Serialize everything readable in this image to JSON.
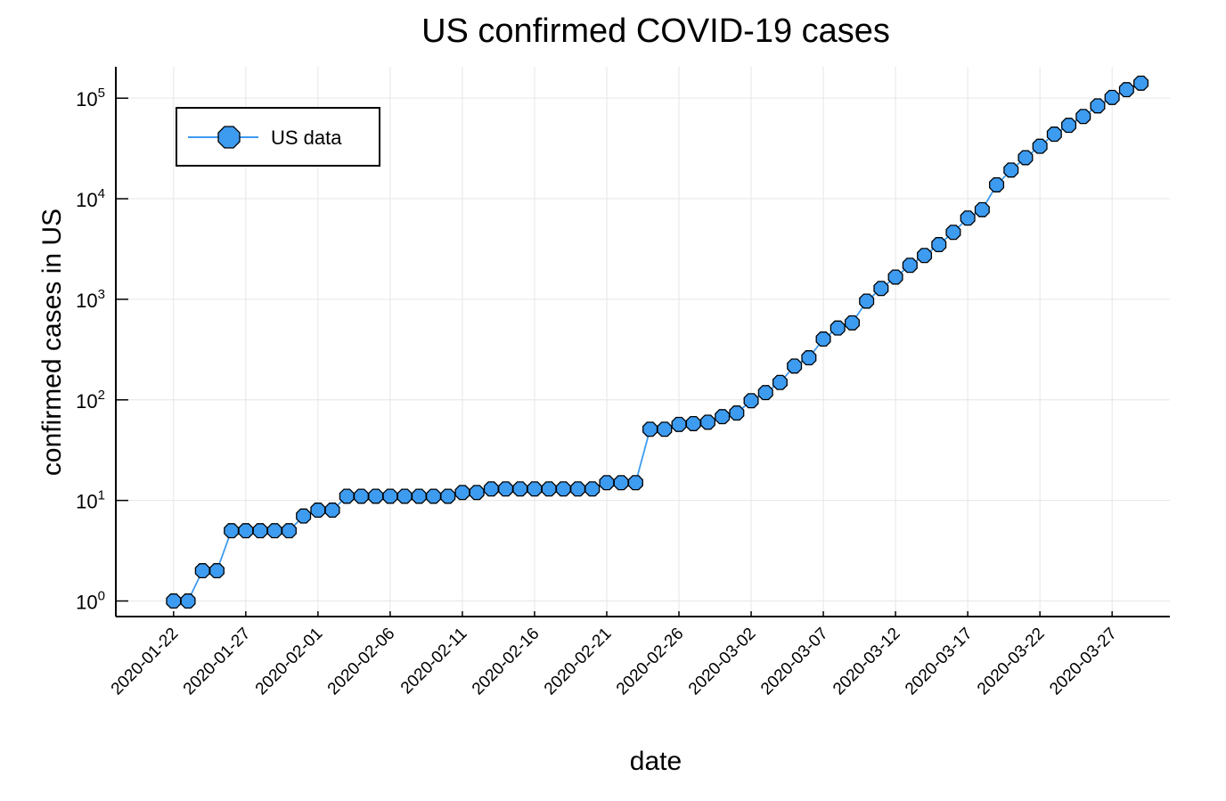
{
  "chart_data": {
    "type": "line",
    "title": "US confirmed COVID-19 cases",
    "xlabel": "date",
    "ylabel": "confirmed cases in US",
    "yscale": "log10",
    "ylim": [
      0.7,
      205000
    ],
    "xlim": [
      "2020-01-18",
      "2020-03-31"
    ],
    "grid": true,
    "legend_position": "top-left",
    "marker": "octagon",
    "color": "#3d9bf0",
    "x_ticks": [
      "2020-01-22",
      "2020-01-27",
      "2020-02-01",
      "2020-02-06",
      "2020-02-11",
      "2020-02-16",
      "2020-02-21",
      "2020-02-26",
      "2020-03-02",
      "2020-03-07",
      "2020-03-12",
      "2020-03-17",
      "2020-03-22",
      "2020-03-27"
    ],
    "y_ticks": [
      {
        "base": "10",
        "exp": "0"
      },
      {
        "base": "10",
        "exp": "1"
      },
      {
        "base": "10",
        "exp": "2"
      },
      {
        "base": "10",
        "exp": "3"
      },
      {
        "base": "10",
        "exp": "4"
      },
      {
        "base": "10",
        "exp": "5"
      }
    ],
    "series": [
      {
        "name": "US data",
        "x_start": "2020-01-22",
        "x_end": "2020-03-29",
        "values": [
          1,
          1,
          2,
          2,
          5,
          5,
          5,
          5,
          5,
          7,
          8,
          8,
          11,
          11,
          11,
          11,
          11,
          11,
          11,
          11,
          12,
          12,
          13,
          13,
          13,
          13,
          13,
          13,
          13,
          13,
          15,
          15,
          15,
          51,
          51,
          57,
          58,
          60,
          68,
          74,
          98,
          118,
          149,
          217,
          262,
          402,
          518,
          583,
          959,
          1281,
          1663,
          2179,
          2727,
          3499,
          4632,
          6421,
          7783,
          13747,
          19273,
          25600,
          33276,
          43847,
          53740,
          65778,
          83836,
          101657,
          121478,
          140886
        ]
      }
    ]
  }
}
